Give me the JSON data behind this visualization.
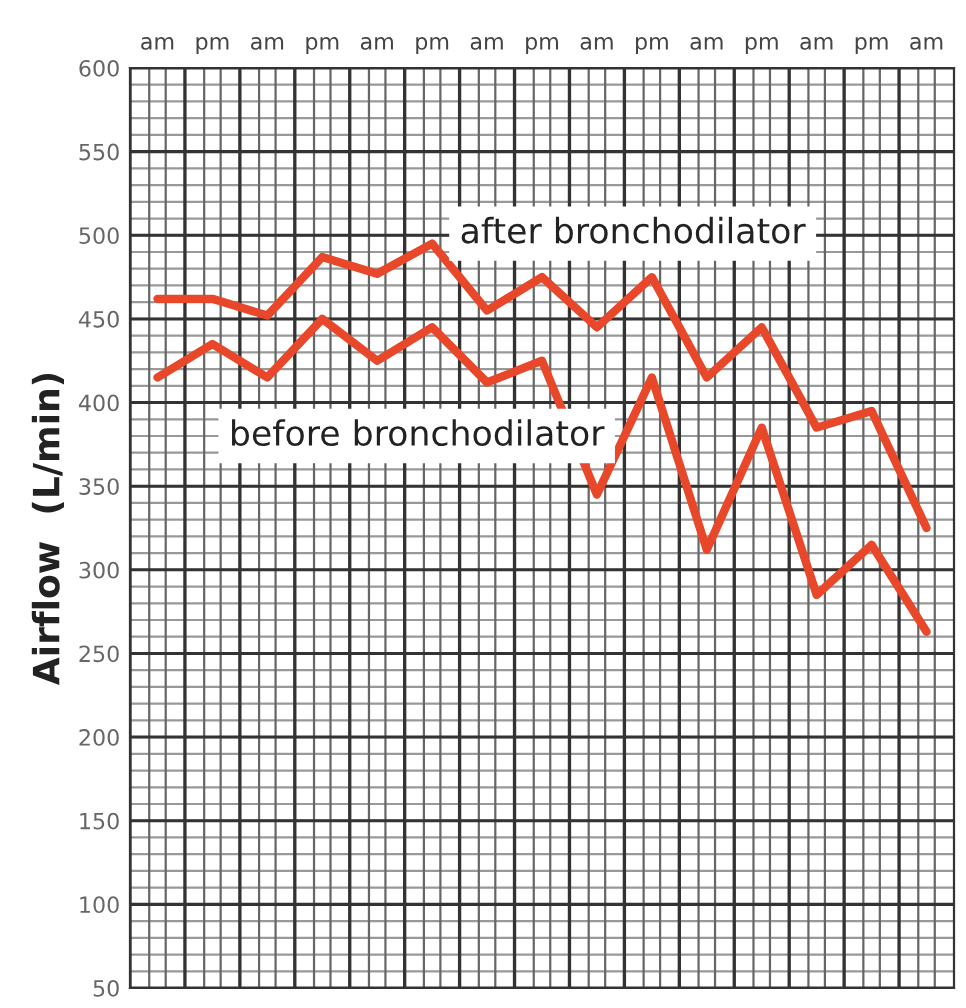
{
  "chart_data": {
    "type": "line",
    "ylabel": "Airflow  (L/min)",
    "categories": [
      "am",
      "pm",
      "am",
      "pm",
      "am",
      "pm",
      "am",
      "pm",
      "am",
      "pm",
      "am",
      "pm",
      "am",
      "pm",
      "am"
    ],
    "ylim": [
      50,
      600
    ],
    "yticks": [
      50,
      100,
      150,
      200,
      250,
      300,
      350,
      400,
      450,
      500,
      550,
      600
    ],
    "grid": true,
    "marker": "none",
    "line_style": "solid",
    "series": [
      {
        "name": "after bronchodilator",
        "color": "#e8472a",
        "values": [
          462,
          462,
          452,
          487,
          477,
          495,
          455,
          475,
          445,
          475,
          415,
          445,
          385,
          395,
          325
        ]
      },
      {
        "name": "before bronchodilator",
        "color": "#e8472a",
        "values": [
          415,
          435,
          415,
          450,
          425,
          445,
          412,
          425,
          345,
          415,
          312,
          385,
          285,
          315,
          263
        ]
      }
    ]
  }
}
